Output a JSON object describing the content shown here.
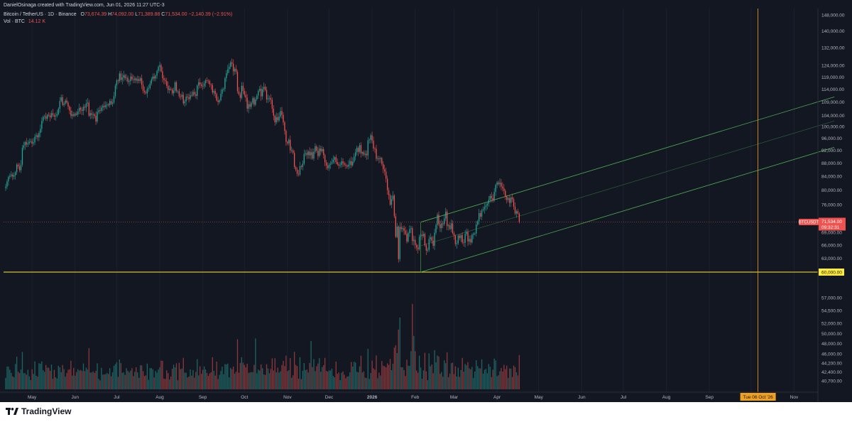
{
  "header": {
    "byline": "DanielOsinaga created with TradingView.com, Jun 01, 2026 11:27 UTC-3",
    "symbol_line": "Bitcoin / TetherUS · 1D · Binance",
    "ohlc": {
      "o_label": "O",
      "o": "73,674.39",
      "h_label": "H",
      "h": "74,092.00",
      "l_label": "L",
      "l": "71,389.88",
      "c_label": "C",
      "c": "71,534.00",
      "change": "−2,140.39 (−2.91%)"
    },
    "volume_label": "Vol · BTC",
    "volume_value": "14.12 K"
  },
  "footer": {
    "brand": "TradingView"
  },
  "colors": {
    "background": "#131722",
    "up": "#26a69a",
    "down": "#ef5350",
    "channel": "#4caf50",
    "support_line": "#ffeb3b",
    "crosshair": "#f0a020"
  },
  "chart_data": {
    "type": "candlestick",
    "title": "Bitcoin / TetherUS · 1D · Binance",
    "price_axis_labels": [
      "148,000.00",
      "140,000.00",
      "132,000.00",
      "124,000.00",
      "119,000.00",
      "114,000.00",
      "109,000.00",
      "104,000.00",
      "100,000.00",
      "96,000.00",
      "92,000.00",
      "88,000.00",
      "84,000.00",
      "80,000.00",
      "76,000.00",
      "72,000.00",
      "69,000.00",
      "66,000.00",
      "63,000.00",
      "57,000.00",
      "54,500.00",
      "52,000.00",
      "50,000.00",
      "48,000.00",
      "46,000.00",
      "44,200.00",
      "42,400.00",
      "40,700.00"
    ],
    "time_axis_labels": [
      "May",
      "Jun",
      "Jul",
      "Aug",
      "Sep",
      "Oct",
      "Nov",
      "Dec",
      "2026",
      "Feb",
      "Mar",
      "Apr",
      "May",
      "Jun",
      "Jul",
      "Aug",
      "Sep",
      "Oct",
      "Nov"
    ],
    "time_axis_bold": [
      "2026"
    ],
    "last_price": {
      "symbol": "BTCUSDT",
      "price": "71,534.00",
      "countdown": "09:32:31",
      "value": 71534
    },
    "support": {
      "label": "60,000.00",
      "value": 60000
    },
    "crosshair": {
      "date_label": "Tue 06 Oct '26",
      "date": "2026-10-06"
    },
    "channel": {
      "lower": {
        "from": [
          "2026-02-05",
          60000
        ],
        "to": [
          "2026-11-30",
          93000
        ]
      },
      "upper": {
        "from": [
          "2026-02-05",
          71500
        ],
        "to": [
          "2026-11-30",
          111000
        ]
      },
      "mid": {
        "from": [
          "2026-02-05",
          65800
        ],
        "to": [
          "2026-11-30",
          102000
        ]
      }
    },
    "start_date": "2025-04-12",
    "closes": [
      81000,
      82500,
      83800,
      84100,
      84500,
      83900,
      84300,
      85200,
      87500,
      87000,
      85800,
      87500,
      92800,
      93600,
      94700,
      93900,
      94300,
      94800,
      95000,
      94200,
      94600,
      96500,
      97000,
      96300,
      97800,
      99200,
      102000,
      103500,
      103700,
      102800,
      104200,
      104000,
      103300,
      104800,
      104200,
      103600,
      103900,
      104500,
      106500,
      109400,
      110800,
      107900,
      108400,
      109600,
      108800,
      107300,
      105800,
      103800,
      104400,
      103900,
      104700,
      104300,
      105500,
      106800,
      106100,
      105700,
      107200,
      106900,
      108500,
      108800,
      103900,
      104800,
      104200,
      104400,
      103800,
      101800,
      105300,
      105900,
      105700,
      106900,
      107600,
      107100,
      107800,
      108100,
      107800,
      109400,
      108300,
      108800,
      111300,
      115500,
      117600,
      117300,
      120500,
      117800,
      118800,
      119800,
      118500,
      118700,
      117000,
      117300,
      119200,
      118100,
      117800,
      118400,
      117500,
      118100,
      117400,
      118500,
      115800,
      113400,
      112800,
      112400,
      114200,
      114500,
      116300,
      118000,
      119200,
      118400,
      119600,
      121600,
      123300,
      124100,
      121400,
      118500,
      117800,
      117300,
      115400,
      113700,
      114200,
      114000,
      112400,
      113500,
      116800,
      113200,
      113200,
      111200,
      111000,
      111800,
      108500,
      109300,
      111100,
      110800,
      110200,
      111700,
      111500,
      112900,
      112000,
      111400,
      115500,
      116800,
      116000,
      115300,
      115200,
      116400,
      117600,
      117500,
      117300,
      116000,
      115700,
      112700,
      113300,
      112100,
      109600,
      109000,
      109700,
      112200,
      113900,
      114200,
      118500,
      120600,
      122300,
      123400,
      125300,
      124700,
      121400,
      122500,
      121200,
      113200,
      112000,
      110600,
      115400,
      113300,
      111800,
      110700,
      106500,
      108200,
      107200,
      108700,
      110500,
      108000,
      110000,
      111500,
      113400,
      114200,
      111200,
      114000,
      115000,
      113700,
      110000,
      110400,
      110600,
      109800,
      106500,
      103900,
      101500,
      103400,
      102200,
      103600,
      105600,
      104200,
      101500,
      98500,
      94800,
      94300,
      95500,
      92000,
      92000,
      91200,
      86800,
      86000,
      84700,
      84500,
      87000,
      86800,
      87800,
      90900,
      91100,
      90500,
      91600,
      90400,
      91400,
      89400,
      91600,
      93300,
      91900,
      90200,
      92600,
      91700,
      92400,
      90500,
      88200,
      87200,
      86400,
      87500,
      87800,
      88200,
      89000,
      89800,
      88300,
      87600,
      87200,
      87400,
      88500,
      87900,
      87500,
      87200,
      86900,
      87500,
      88600,
      87300,
      88400,
      90000,
      91400,
      92800,
      91500,
      93700,
      91000,
      91400,
      90600,
      90900,
      90400,
      95300,
      95500,
      97000,
      95200,
      92600,
      92500,
      89300,
      89400,
      89200,
      89500,
      87700,
      86100,
      85400,
      83300,
      80000,
      78600,
      76000,
      77500,
      78500,
      73000,
      67900,
      70400,
      62800,
      70300,
      69800,
      70000,
      69400,
      68600,
      66800,
      68800,
      69800,
      70000,
      66900,
      67200,
      66000,
      65400,
      65000,
      67900,
      68400,
      68100,
      68600,
      65900,
      64700,
      64900,
      67400,
      67800,
      67000,
      65800,
      68900,
      70800,
      73400,
      71000,
      70000,
      71200,
      71000,
      72400,
      74200,
      70500,
      70700,
      69800,
      71200,
      68800,
      68200,
      66200,
      66400,
      68200,
      67600,
      68300,
      66600,
      66500,
      68600,
      69100,
      66800,
      67400,
      66600,
      68400,
      68700,
      68700,
      70900,
      71700,
      73800,
      72900,
      74500,
      74800,
      75400,
      75800,
      76300,
      77300,
      78400,
      77800,
      77200,
      79500,
      81500,
      82200,
      81700,
      82100,
      81000,
      80500,
      79800,
      78200,
      77300,
      77800,
      76500,
      78000,
      77500,
      75500,
      73700,
      74300,
      73700,
      71500
    ],
    "volume_axis_range": [
      39000,
      58000
    ]
  }
}
